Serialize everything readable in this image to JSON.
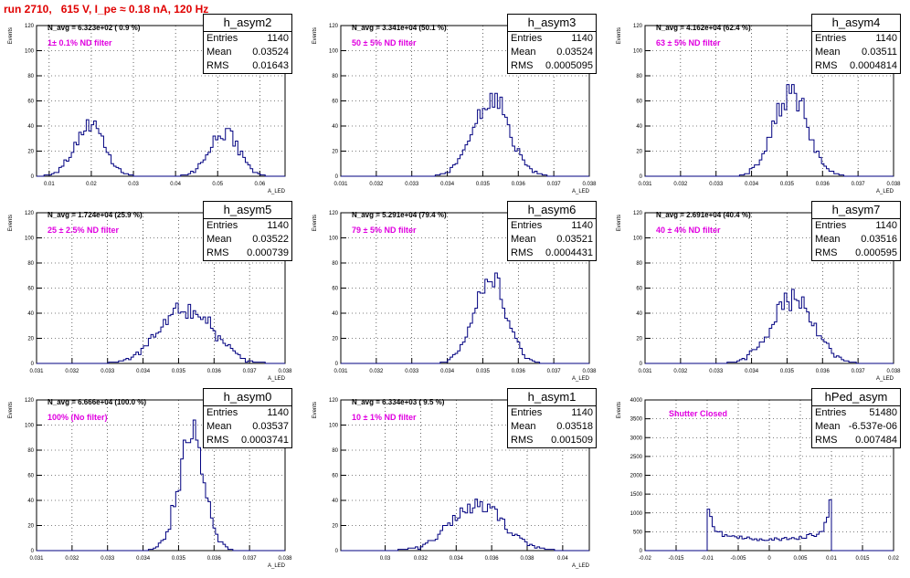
{
  "title": "run 2710,   615 V, I_pe ≈ 0.18 nA, 120 Hz",
  "colors": {
    "title": "#e00000",
    "filter": "#e000e0",
    "line": "#000080",
    "grid": "#000000"
  },
  "chart_data": [
    {
      "type": "histogram",
      "name": "h_asym2",
      "ylabel": "Events",
      "xlabel": "A_LED",
      "xlim": [
        0.007,
        0.066
      ],
      "ylim": [
        0,
        120
      ],
      "xticks": [
        "0.01",
        "0.02",
        "0.03",
        "0.04",
        "0.05",
        "0.06"
      ],
      "xtick_values": [
        0.01,
        0.02,
        0.03,
        0.04,
        0.05,
        0.06
      ],
      "yticks": [
        0,
        20,
        40,
        60,
        80,
        100,
        120
      ],
      "stats": {
        "entries": "1140",
        "mean": "0.03524",
        "rms": "0.01643"
      },
      "n_avg": "N_avg = 6.323e+02 ( 0.9 %)",
      "filter": "1± 0.1% ND filter",
      "peaks": [
        {
          "x": 0.0195,
          "s": 0.0035,
          "h": 40
        },
        {
          "x": 0.0515,
          "s": 0.0035,
          "h": 36
        }
      ]
    },
    {
      "type": "histogram",
      "name": "h_asym3",
      "ylabel": "Events",
      "xlabel": "A_LED",
      "xlim": [
        0.031,
        0.038
      ],
      "ylim": [
        0,
        120
      ],
      "xticks": [
        "0.031",
        "0.032",
        "0.033",
        "0.034",
        "0.035",
        "0.036",
        "0.037",
        "0.038"
      ],
      "xtick_values": [
        0.031,
        0.032,
        0.033,
        0.034,
        0.035,
        0.036,
        0.037,
        0.038
      ],
      "yticks": [
        0,
        20,
        40,
        60,
        80,
        100,
        120
      ],
      "stats": {
        "entries": "1140",
        "mean": "0.03524",
        "rms": "0.0005095"
      },
      "n_avg": "N_avg = 3.341e+04 (50.1 %)",
      "filter": "50 ± 5% ND filter",
      "peaks": [
        {
          "x": 0.03524,
          "s": 0.00051,
          "h": 62
        }
      ]
    },
    {
      "type": "histogram",
      "name": "h_asym4",
      "ylabel": "Events",
      "xlabel": "A_LED",
      "xlim": [
        0.031,
        0.038
      ],
      "ylim": [
        0,
        120
      ],
      "xticks": [
        "0.031",
        "0.032",
        "0.033",
        "0.034",
        "0.035",
        "0.036",
        "0.037",
        "0.038"
      ],
      "xtick_values": [
        0.031,
        0.032,
        0.033,
        0.034,
        0.035,
        0.036,
        0.037,
        0.038
      ],
      "yticks": [
        0,
        20,
        40,
        60,
        80,
        100,
        120
      ],
      "stats": {
        "entries": "1140",
        "mean": "0.03511",
        "rms": "0.0004814"
      },
      "n_avg": "N_avg = 4.162e+04 (62.4 %)",
      "filter": "63 ± 5% ND filter",
      "peaks": [
        {
          "x": 0.03511,
          "s": 0.00048,
          "h": 68
        }
      ]
    },
    {
      "type": "histogram",
      "name": "h_asym5",
      "ylabel": "Events",
      "xlabel": "A_LED",
      "xlim": [
        0.031,
        0.038
      ],
      "ylim": [
        0,
        120
      ],
      "xticks": [
        "0.031",
        "0.032",
        "0.033",
        "0.034",
        "0.035",
        "0.036",
        "0.037",
        "0.038"
      ],
      "xtick_values": [
        0.031,
        0.032,
        0.033,
        0.034,
        0.035,
        0.036,
        0.037,
        0.038
      ],
      "yticks": [
        0,
        20,
        40,
        60,
        80,
        100,
        120
      ],
      "stats": {
        "entries": "1140",
        "mean": "0.03522",
        "rms": "0.000739"
      },
      "n_avg": "N_avg = 1.724e+04 (25.9 %)",
      "filter": "25 ± 2.5% ND filter",
      "peaks": [
        {
          "x": 0.03522,
          "s": 0.00074,
          "h": 44
        }
      ]
    },
    {
      "type": "histogram",
      "name": "h_asym6",
      "ylabel": "Events",
      "xlabel": "A_LED",
      "xlim": [
        0.031,
        0.038
      ],
      "ylim": [
        0,
        120
      ],
      "xticks": [
        "0.031",
        "0.032",
        "0.033",
        "0.034",
        "0.035",
        "0.036",
        "0.037",
        "0.038"
      ],
      "xtick_values": [
        0.031,
        0.032,
        0.033,
        0.034,
        0.035,
        0.036,
        0.037,
        0.038
      ],
      "yticks": [
        0,
        20,
        40,
        60,
        80,
        100,
        120
      ],
      "stats": {
        "entries": "1140",
        "mean": "0.03521",
        "rms": "0.0004431"
      },
      "n_avg": "N_avg = 5.291e+04 (79.4 %)",
      "filter": "79 ± 5% ND filter",
      "peaks": [
        {
          "x": 0.03521,
          "s": 0.00044,
          "h": 72
        }
      ]
    },
    {
      "type": "histogram",
      "name": "h_asym7",
      "ylabel": "Events",
      "xlabel": "A_LED",
      "xlim": [
        0.031,
        0.038
      ],
      "ylim": [
        0,
        120
      ],
      "xticks": [
        "0.031",
        "0.032",
        "0.033",
        "0.034",
        "0.035",
        "0.036",
        "0.037",
        "0.038"
      ],
      "xtick_values": [
        0.031,
        0.032,
        0.033,
        0.034,
        0.035,
        0.036,
        0.037,
        0.038
      ],
      "yticks": [
        0,
        20,
        40,
        60,
        80,
        100,
        120
      ],
      "stats": {
        "entries": "1140",
        "mean": "0.03516",
        "rms": "0.000595"
      },
      "n_avg": "N_avg = 2.691e+04 (40.4 %)",
      "filter": "40 ± 4% ND filter",
      "peaks": [
        {
          "x": 0.03516,
          "s": 0.0006,
          "h": 52
        }
      ]
    },
    {
      "type": "histogram",
      "name": "h_asym0",
      "ylabel": "Events",
      "xlabel": "A_LED",
      "xlim": [
        0.031,
        0.038
      ],
      "ylim": [
        0,
        120
      ],
      "xticks": [
        "0.031",
        "0.032",
        "0.033",
        "0.034",
        "0.035",
        "0.036",
        "0.037",
        "0.038"
      ],
      "xtick_values": [
        0.031,
        0.032,
        0.033,
        0.034,
        0.035,
        0.036,
        0.037,
        0.038
      ],
      "yticks": [
        0,
        20,
        40,
        60,
        80,
        100,
        120
      ],
      "stats": {
        "entries": "1140",
        "mean": "0.03537",
        "rms": "0.0003741"
      },
      "n_avg": "N_avg = 6.666e+04 (100.0 %)",
      "filter": "100% (No filter)",
      "peaks": [
        {
          "x": 0.03537,
          "s": 0.00037,
          "h": 90
        }
      ]
    },
    {
      "type": "histogram",
      "name": "h_asym1",
      "ylabel": "Events",
      "xlabel": "A_LED",
      "xlim": [
        0.0275,
        0.0415
      ],
      "ylim": [
        0,
        120
      ],
      "xticks": [
        "0.03",
        "0.032",
        "0.034",
        "0.036",
        "0.038",
        "0.04"
      ],
      "xtick_values": [
        0.03,
        0.032,
        0.034,
        0.036,
        0.038,
        0.04
      ],
      "yticks": [
        0,
        20,
        40,
        60,
        80,
        100,
        120
      ],
      "stats": {
        "entries": "1140",
        "mean": "0.03518",
        "rms": "0.001509"
      },
      "n_avg": "N_avg = 6.334e+03 ( 9.5 %)",
      "filter": "10 ± 1% ND filter",
      "peaks": [
        {
          "x": 0.03518,
          "s": 0.0015,
          "h": 36
        }
      ]
    },
    {
      "type": "histogram",
      "name": "hPed_asym",
      "ylabel": "Events",
      "xlabel": "",
      "xlim": [
        -0.02,
        0.02
      ],
      "ylim": [
        0,
        4000
      ],
      "xticks": [
        "-0.02",
        "-0.015",
        "-0.01",
        "-0.005",
        "0",
        "0.005",
        "0.01",
        "0.015",
        "0.02"
      ],
      "xtick_values": [
        -0.02,
        -0.015,
        -0.01,
        -0.005,
        0,
        0.005,
        0.01,
        0.015,
        0.02
      ],
      "yticks": [
        0,
        500,
        1000,
        1500,
        2000,
        2500,
        3000,
        3500,
        4000
      ],
      "stats": {
        "entries": "51480",
        "mean": "-6.537e-06",
        "rms": "0.007484"
      },
      "n_avg": "",
      "filter": "Shutter Closed",
      "arcsine": true
    }
  ],
  "stat_labels": {
    "entries": "Entries",
    "mean": "Mean",
    "rms": "RMS"
  }
}
